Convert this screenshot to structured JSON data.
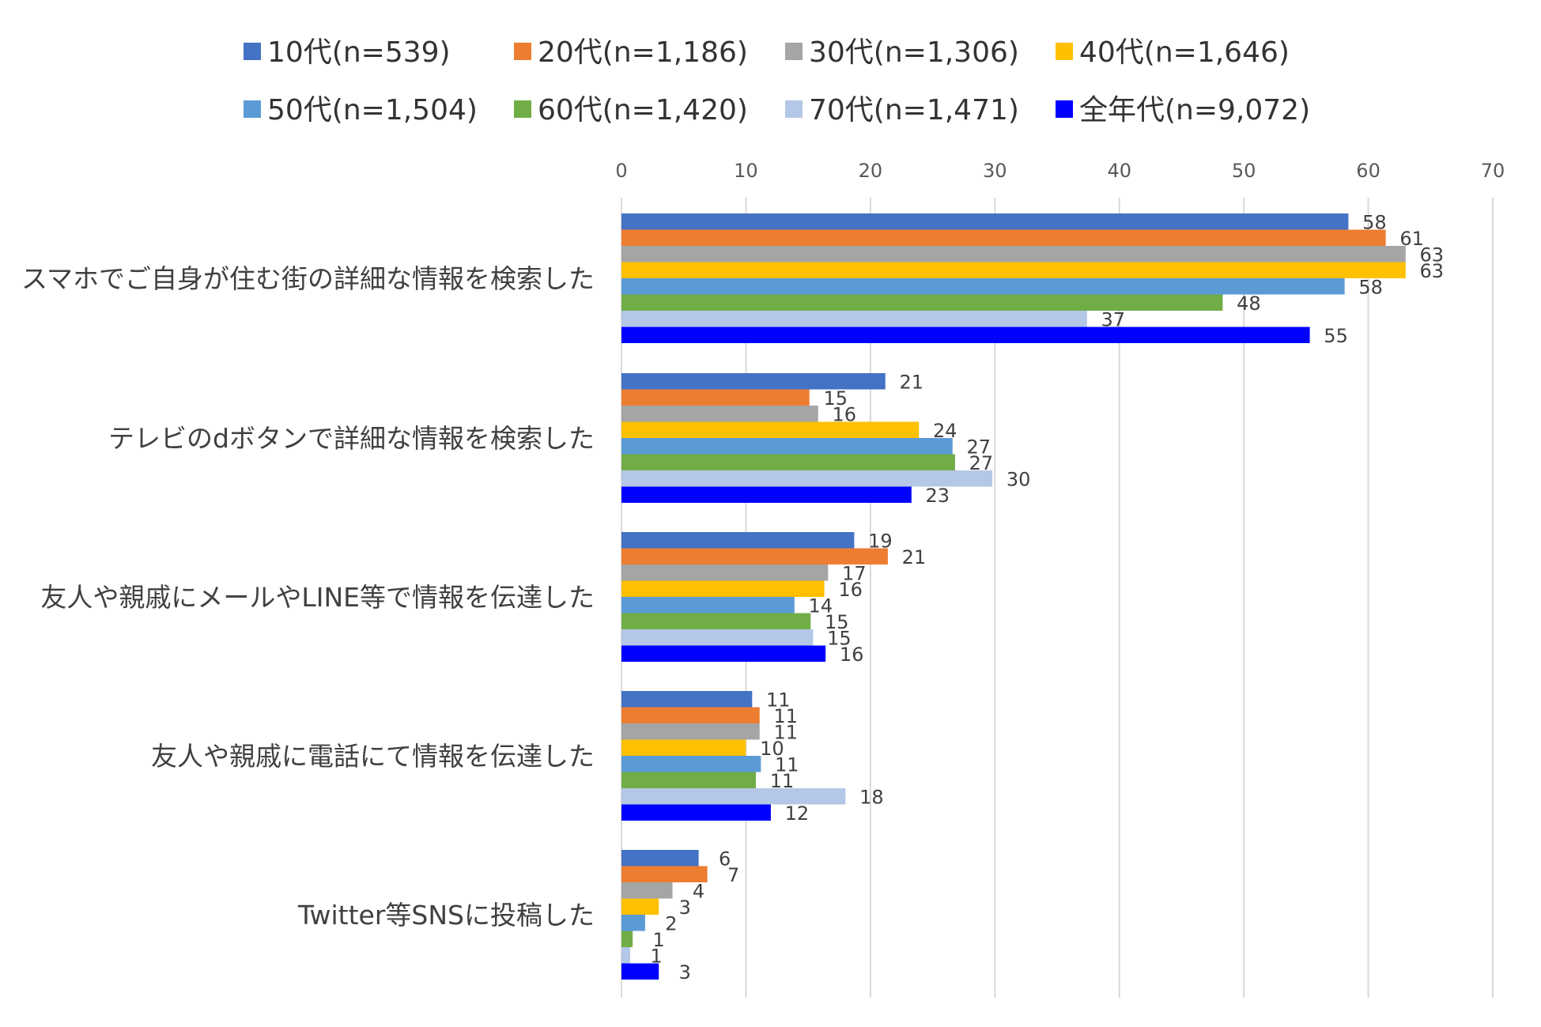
{
  "chart_data": {
    "type": "bar",
    "orientation": "horizontal",
    "title": "",
    "xlim": [
      0,
      70
    ],
    "xticks": [
      0,
      10,
      20,
      30,
      40,
      50,
      60,
      70
    ],
    "grid": true,
    "legend_position": "top",
    "categories": [
      "スマホでご自身が住む街の詳細な情報を検索した",
      "テレビのdボタンで詳細な情報を検索した",
      "友人や親戚にメールやLINE等で情報を伝達した",
      "友人や親戚に電話にて情報を伝達した",
      "Twitter等SNSに投稿した"
    ],
    "series": [
      {
        "name": "10代(n=539)",
        "color": "#4472C4",
        "values": [
          58,
          21,
          19,
          11,
          6
        ],
        "plotted": [
          58.4,
          21.2,
          18.7,
          10.5,
          6.2
        ]
      },
      {
        "name": "20代(n=1,186)",
        "color": "#ED7D31",
        "values": [
          61,
          15,
          21,
          11,
          7
        ],
        "plotted": [
          61.4,
          15.1,
          21.4,
          11.1,
          6.9
        ]
      },
      {
        "name": "30代(n=1,306)",
        "color": "#A5A5A5",
        "values": [
          63,
          16,
          17,
          11,
          4
        ],
        "plotted": [
          63.0,
          15.8,
          16.6,
          11.1,
          4.1
        ]
      },
      {
        "name": "40代(n=1,646)",
        "color": "#FFC000",
        "values": [
          63,
          24,
          16,
          10,
          3
        ],
        "plotted": [
          63.0,
          23.9,
          16.3,
          10.0,
          3.0
        ]
      },
      {
        "name": "50代(n=1,504)",
        "color": "#5B9BD5",
        "values": [
          58,
          27,
          14,
          11,
          2
        ],
        "plotted": [
          58.1,
          26.6,
          13.9,
          11.2,
          1.9
        ]
      },
      {
        "name": "60代(n=1,420)",
        "color": "#70AD47",
        "values": [
          48,
          27,
          15,
          11,
          1
        ],
        "plotted": [
          48.3,
          26.8,
          15.2,
          10.8,
          0.9
        ]
      },
      {
        "name": "70代(n=1,471)",
        "color": "#B4C7E7",
        "values": [
          37,
          30,
          15,
          18,
          1
        ],
        "plotted": [
          37.4,
          29.8,
          15.4,
          18.0,
          0.7
        ]
      },
      {
        "name": "全年代(n=9,072)",
        "color": "#0000FF",
        "values": [
          55,
          23,
          16,
          12,
          3
        ],
        "plotted": [
          55.3,
          23.3,
          16.4,
          12.0,
          3.0
        ]
      }
    ]
  }
}
